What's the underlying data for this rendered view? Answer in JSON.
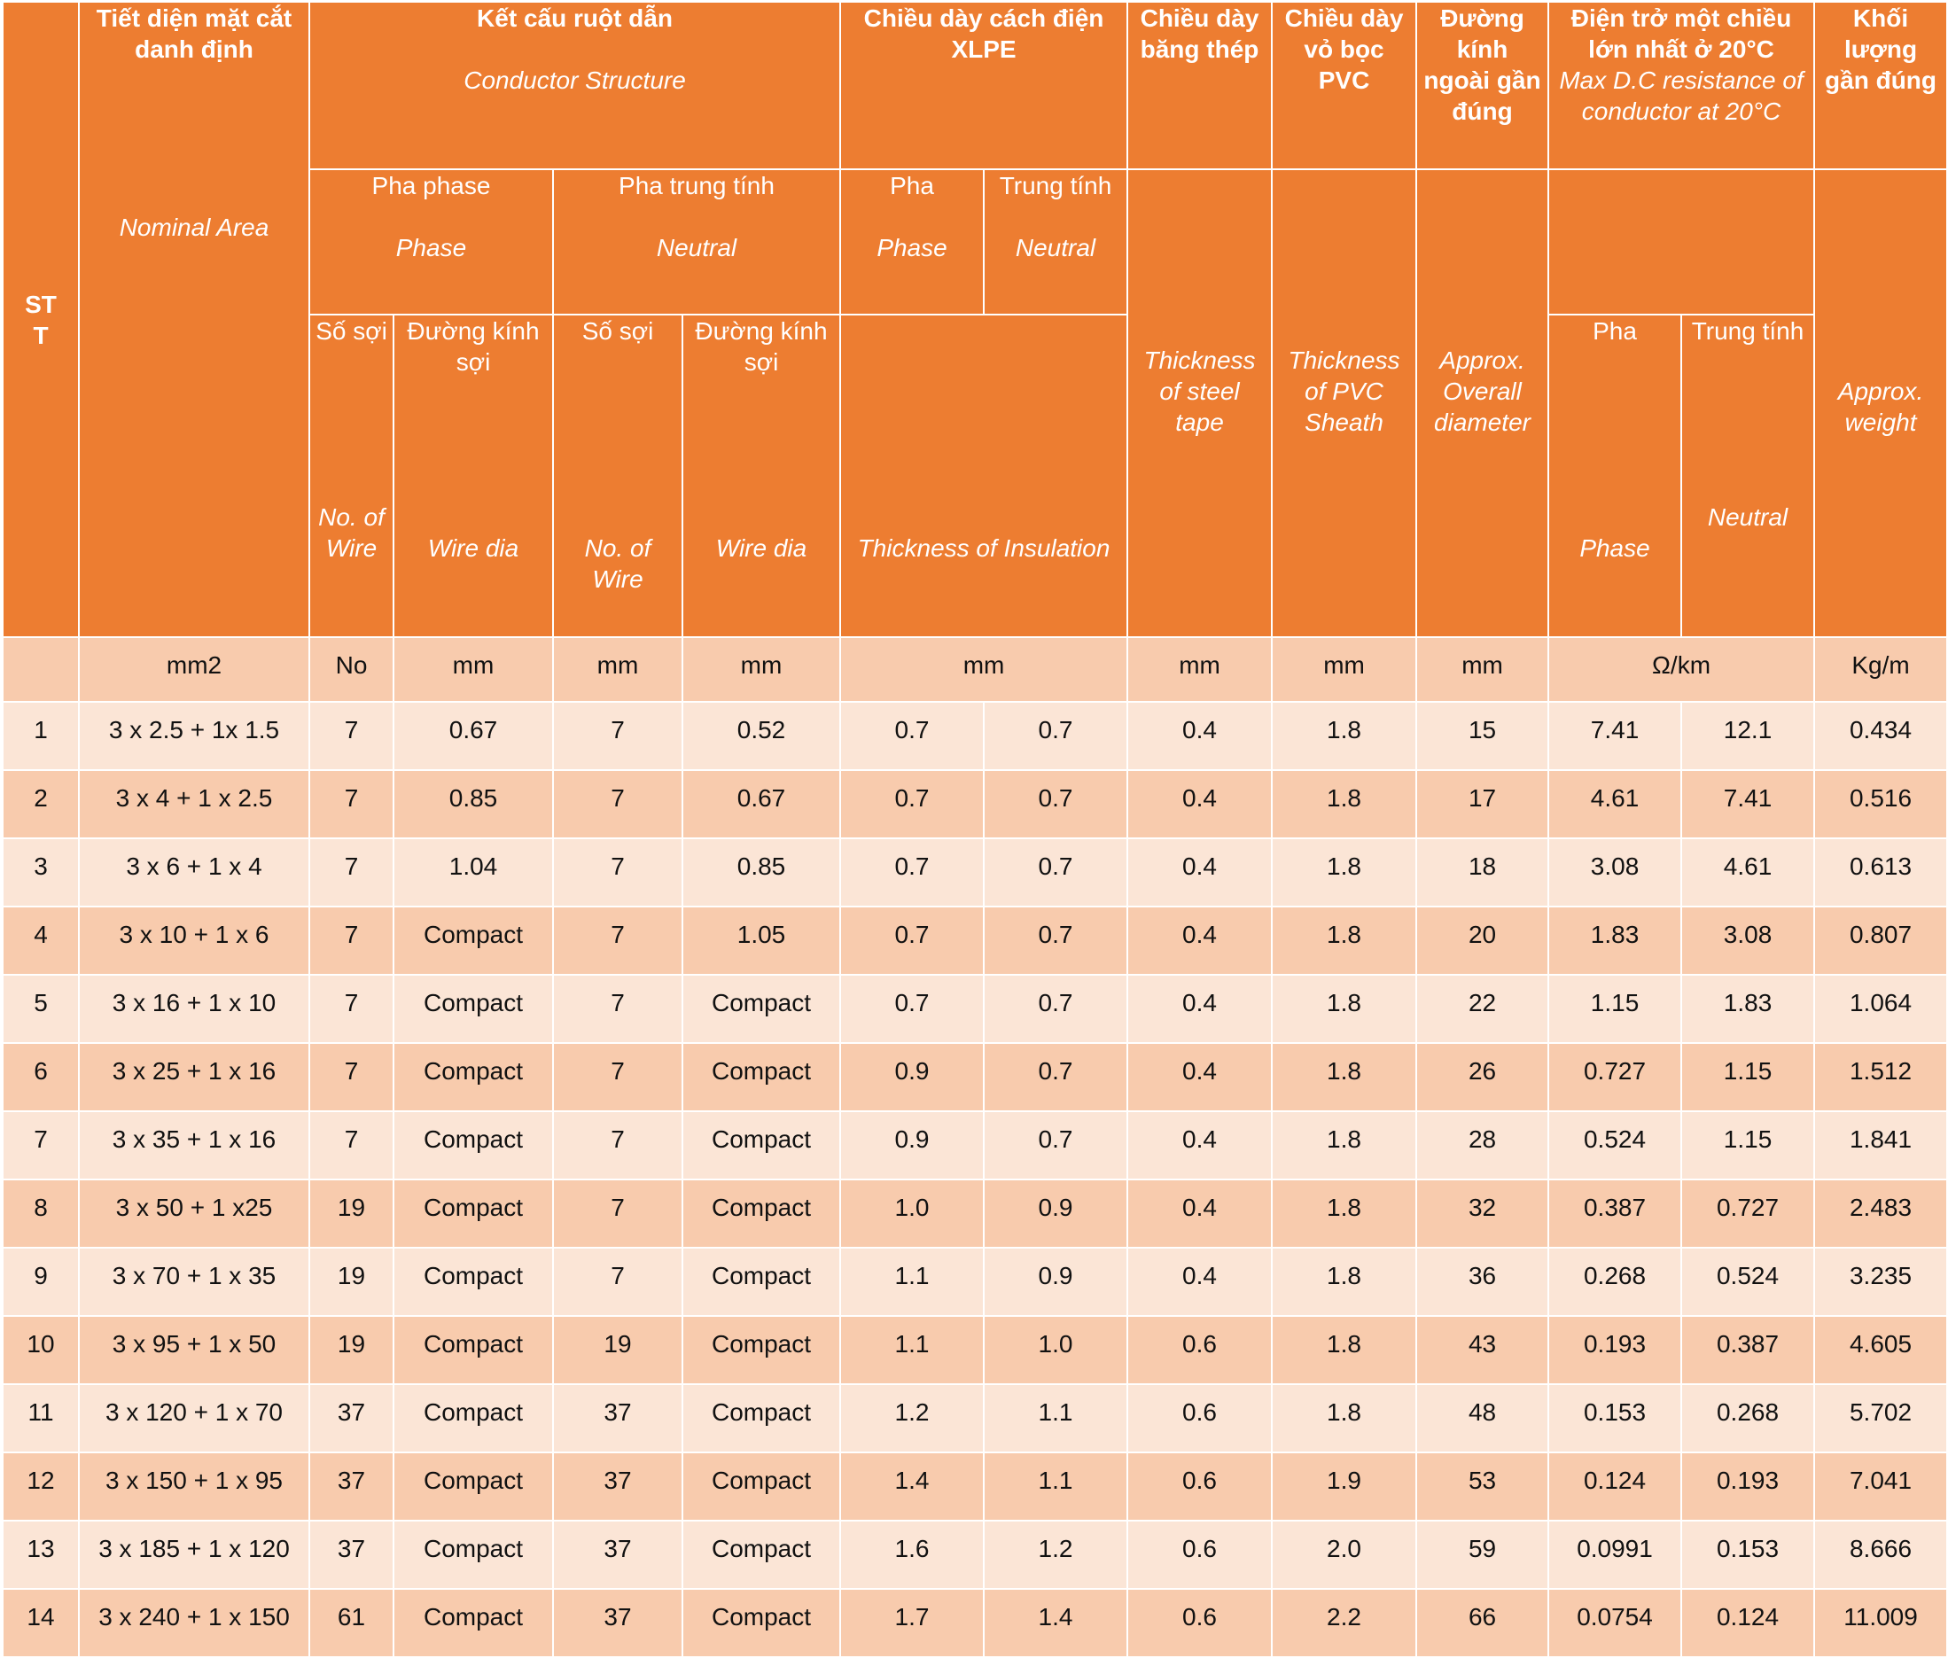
{
  "header": {
    "stt": "ST\nT",
    "nominal_vi": "Tiết diện mặt cắt danh định",
    "nominal_en": "Nominal Area",
    "conductor_vi": "Kết cấu ruột dẫn",
    "conductor_en": "Conductor Structure",
    "insulation_vi": "Chiều dày cách điện XLPE",
    "steel_vi": "Chiều dày băng thép",
    "steel_en": "Thickness of steel tape",
    "sheath_vi": "Chiều dày vỏ bọc PVC",
    "sheath_en": "Thickness of PVC Sheath",
    "diameter_vi": "Đường kính ngoài gần đúng",
    "diameter_en": "Approx. Overall diameter",
    "resistance_vi": "Điện trở một chiều lớn nhất ở 20°C",
    "resistance_en": "Max D.C resistance of conductor at 20°C",
    "weight_vi": "Khối lượng gần đúng",
    "weight_en": "Approx. weight",
    "phase_group_vi": "Pha phase",
    "phase_group_en": "Phase",
    "neutral_group_vi": "Pha trung tính",
    "neutral_group_en": "Neutral",
    "ins_phase_vi": "Pha",
    "ins_phase_en": "Phase",
    "ins_neutral_vi": "Trung tính",
    "ins_neutral_en": "Neutral",
    "wires_vi": "Số sợi",
    "wires_en": "No. of Wire",
    "wiredia_vi": "Đường kính sợi",
    "wiredia_en": "Wire dia",
    "wires_n_en": "No. of Wire",
    "ins_thickness_en": "Thickness of Insulation",
    "res_phase_vi": "Pha",
    "res_phase_en": "Phase",
    "res_neutral_vi": "Trung tính",
    "res_neutral_en": "Neutral"
  },
  "units": {
    "area": "mm2",
    "wires_p": "No",
    "dia_p": "mm",
    "wires_n": "mm",
    "dia_n": "mm",
    "insulation": "mm",
    "steel": "mm",
    "sheath": "mm",
    "diameter": "mm",
    "resistance": "Ω/km",
    "weight": "Kg/m"
  },
  "columns": [
    "stt",
    "area",
    "wires_p",
    "dia_p",
    "wires_n",
    "dia_n",
    "ins_p",
    "ins_n",
    "steel",
    "sheath",
    "diameter",
    "res_p",
    "res_n",
    "weight"
  ],
  "rows": [
    {
      "stt": "1",
      "area": "3 x 2.5 + 1x 1.5",
      "wires_p": "7",
      "dia_p": "0.67",
      "wires_n": "7",
      "dia_n": "0.52",
      "ins_p": "0.7",
      "ins_n": "0.7",
      "steel": "0.4",
      "sheath": "1.8",
      "diameter": "15",
      "res_p": "7.41",
      "res_n": "12.1",
      "weight": "0.434"
    },
    {
      "stt": "2",
      "area": "3 x 4 + 1 x 2.5",
      "wires_p": "7",
      "dia_p": "0.85",
      "wires_n": "7",
      "dia_n": "0.67",
      "ins_p": "0.7",
      "ins_n": "0.7",
      "steel": "0.4",
      "sheath": "1.8",
      "diameter": "17",
      "res_p": "4.61",
      "res_n": "7.41",
      "weight": "0.516"
    },
    {
      "stt": "3",
      "area": "3 x 6 + 1 x 4",
      "wires_p": "7",
      "dia_p": "1.04",
      "wires_n": "7",
      "dia_n": "0.85",
      "ins_p": "0.7",
      "ins_n": "0.7",
      "steel": "0.4",
      "sheath": "1.8",
      "diameter": "18",
      "res_p": "3.08",
      "res_n": "4.61",
      "weight": "0.613"
    },
    {
      "stt": "4",
      "area": "3 x 10 + 1 x 6",
      "wires_p": "7",
      "dia_p": "Compact",
      "wires_n": "7",
      "dia_n": "1.05",
      "ins_p": "0.7",
      "ins_n": "0.7",
      "steel": "0.4",
      "sheath": "1.8",
      "diameter": "20",
      "res_p": "1.83",
      "res_n": "3.08",
      "weight": "0.807"
    },
    {
      "stt": "5",
      "area": "3 x 16 + 1 x 10",
      "wires_p": "7",
      "dia_p": "Compact",
      "wires_n": "7",
      "dia_n": "Compact",
      "ins_p": "0.7",
      "ins_n": "0.7",
      "steel": "0.4",
      "sheath": "1.8",
      "diameter": "22",
      "res_p": "1.15",
      "res_n": "1.83",
      "weight": "1.064"
    },
    {
      "stt": "6",
      "area": "3 x 25 + 1 x 16",
      "wires_p": "7",
      "dia_p": "Compact",
      "wires_n": "7",
      "dia_n": "Compact",
      "ins_p": "0.9",
      "ins_n": "0.7",
      "steel": "0.4",
      "sheath": "1.8",
      "diameter": "26",
      "res_p": "0.727",
      "res_n": "1.15",
      "weight": "1.512"
    },
    {
      "stt": "7",
      "area": "3 x 35 + 1 x 16",
      "wires_p": "7",
      "dia_p": "Compact",
      "wires_n": "7",
      "dia_n": "Compact",
      "ins_p": "0.9",
      "ins_n": "0.7",
      "steel": "0.4",
      "sheath": "1.8",
      "diameter": "28",
      "res_p": "0.524",
      "res_n": "1.15",
      "weight": "1.841"
    },
    {
      "stt": "8",
      "area": "3 x 50 + 1 x25",
      "wires_p": "19",
      "dia_p": "Compact",
      "wires_n": "7",
      "dia_n": "Compact",
      "ins_p": "1.0",
      "ins_n": "0.9",
      "steel": "0.4",
      "sheath": "1.8",
      "diameter": "32",
      "res_p": "0.387",
      "res_n": "0.727",
      "weight": "2.483"
    },
    {
      "stt": "9",
      "area": "3 x 70 + 1 x 35",
      "wires_p": "19",
      "dia_p": "Compact",
      "wires_n": "7",
      "dia_n": "Compact",
      "ins_p": "1.1",
      "ins_n": "0.9",
      "steel": "0.4",
      "sheath": "1.8",
      "diameter": "36",
      "res_p": "0.268",
      "res_n": "0.524",
      "weight": "3.235"
    },
    {
      "stt": "10",
      "area": "3 x 95 + 1 x 50",
      "wires_p": "19",
      "dia_p": "Compact",
      "wires_n": "19",
      "dia_n": "Compact",
      "ins_p": "1.1",
      "ins_n": "1.0",
      "steel": "0.6",
      "sheath": "1.8",
      "diameter": "43",
      "res_p": "0.193",
      "res_n": "0.387",
      "weight": "4.605"
    },
    {
      "stt": "11",
      "area": "3 x 120 + 1 x 70",
      "wires_p": "37",
      "dia_p": "Compact",
      "wires_n": "37",
      "dia_n": "Compact",
      "ins_p": "1.2",
      "ins_n": "1.1",
      "steel": "0.6",
      "sheath": "1.8",
      "diameter": "48",
      "res_p": "0.153",
      "res_n": "0.268",
      "weight": "5.702"
    },
    {
      "stt": "12",
      "area": "3 x 150 + 1 x 95",
      "wires_p": "37",
      "dia_p": "Compact",
      "wires_n": "37",
      "dia_n": "Compact",
      "ins_p": "1.4",
      "ins_n": "1.1",
      "steel": "0.6",
      "sheath": "1.9",
      "diameter": "53",
      "res_p": "0.124",
      "res_n": "0.193",
      "weight": "7.041"
    },
    {
      "stt": "13",
      "area": "3 x 185 + 1 x 120",
      "wires_p": "37",
      "dia_p": "Compact",
      "wires_n": "37",
      "dia_n": "Compact",
      "ins_p": "1.6",
      "ins_n": "1.2",
      "steel": "0.6",
      "sheath": "2.0",
      "diameter": "59",
      "res_p": "0.0991",
      "res_n": "0.153",
      "weight": "8.666"
    },
    {
      "stt": "14",
      "area": "3 x 240 + 1 x 150",
      "wires_p": "61",
      "dia_p": "Compact",
      "wires_n": "37",
      "dia_n": "Compact",
      "ins_p": "1.7",
      "ins_n": "1.4",
      "steel": "0.6",
      "sheath": "2.2",
      "diameter": "66",
      "res_p": "0.0754",
      "res_n": "0.124",
      "weight": "11.009"
    }
  ]
}
